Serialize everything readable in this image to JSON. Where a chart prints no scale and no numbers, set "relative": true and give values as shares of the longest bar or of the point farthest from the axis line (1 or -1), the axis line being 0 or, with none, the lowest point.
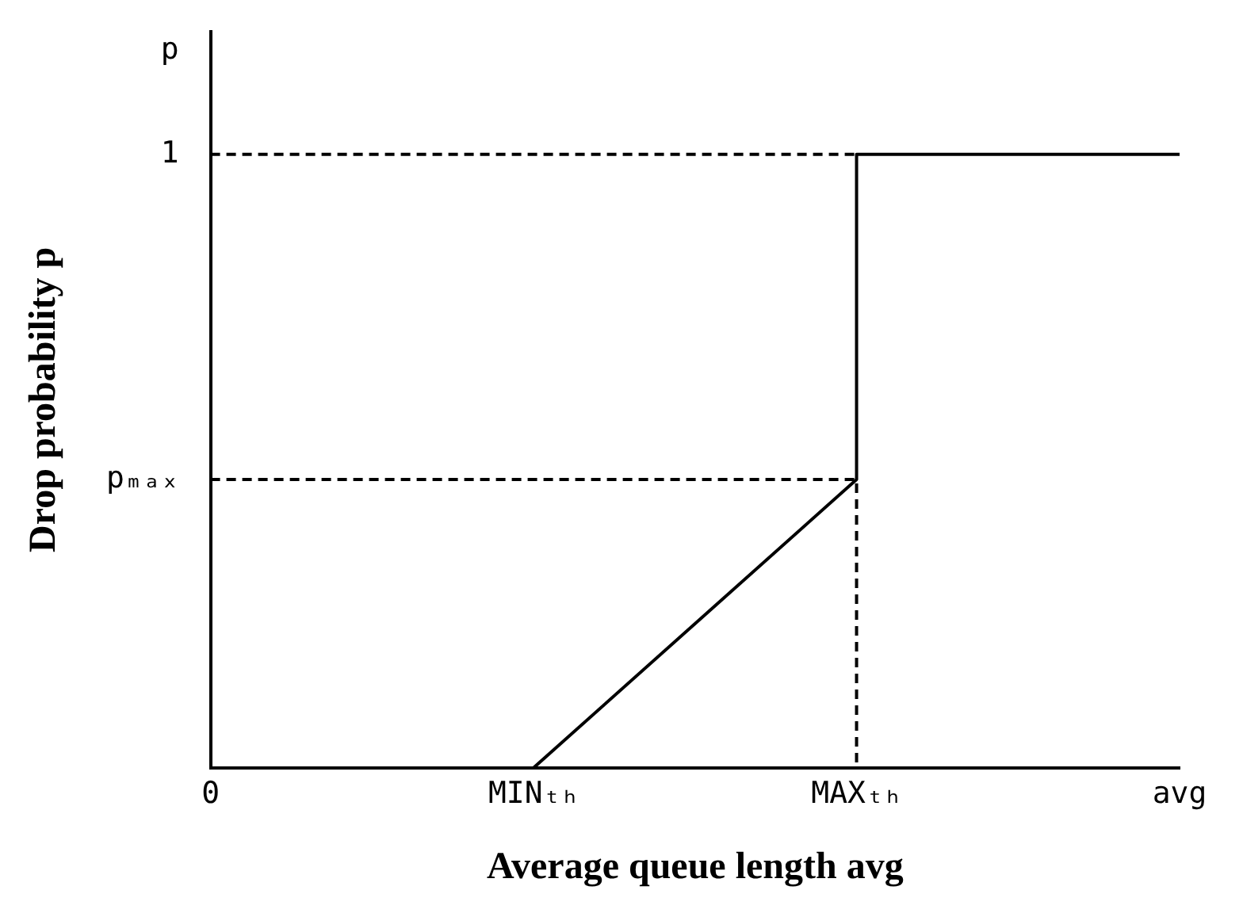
{
  "chart_data": {
    "type": "line",
    "xlabel": "Average queue length avg",
    "ylabel": "Drop probability p",
    "categories": [
      "0",
      "MINₜₕ",
      "MAXₜₕ",
      "avg"
    ],
    "relative": true,
    "legend": false,
    "marker": "none",
    "tick_labels": "x",
    "annotations": [
      {
        "text": "pₘₐₓ",
        "x": "0",
        "y": 0.47
      },
      {
        "text": "1",
        "x": "0",
        "y": 1
      },
      "p"
    ],
    "series": [
      {
        "color": "#000000",
        "line_style": "solid",
        "x": [
          "MINₜₕ",
          "MAXₜₕ",
          "MAXₜₕ",
          "avg"
        ],
        "values": [
          0,
          0.47,
          1,
          1
        ]
      },
      {
        "color": "#000000",
        "line_style": "dashed",
        "x": [
          "0",
          "MAXₜₕ"
        ],
        "values": [
          1,
          1
        ]
      },
      {
        "color": "#000000",
        "line_style": "dashed",
        "x": [
          "0",
          "MAXₜₕ",
          "MAXₜₕ"
        ],
        "values": [
          0.47,
          0.47,
          0
        ]
      }
    ]
  }
}
